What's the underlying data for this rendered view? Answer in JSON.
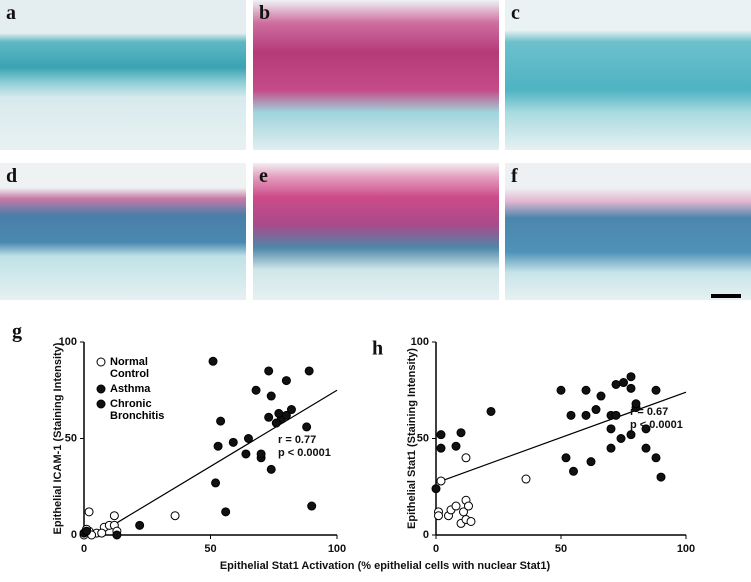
{
  "micrographs": [
    "a",
    "b",
    "c",
    "d",
    "e",
    "f"
  ],
  "chart_data": [
    {
      "type": "scatter",
      "panel": "g",
      "y_label": "Epithelial ICAM-1 (Staining Intensity)",
      "x_label": "Epithelial Stat1 Activation (% epithelial cells with nuclear Stat1)",
      "xlim": [
        0,
        100
      ],
      "ylim": [
        0,
        100
      ],
      "xticks": [
        0,
        50,
        100
      ],
      "yticks": [
        0,
        50,
        100
      ],
      "series": [
        {
          "name": "Normal Control",
          "color": "#ffffff",
          "x": [
            2,
            0,
            2,
            5,
            8,
            10,
            12,
            12,
            13,
            36,
            3,
            7,
            1
          ],
          "values": [
            12,
            0,
            2,
            1,
            4,
            5,
            10,
            5,
            2,
            10,
            0,
            1,
            3
          ]
        },
        {
          "name": "Asthma",
          "color": "#111111",
          "x": [
            51,
            73,
            89,
            80,
            68,
            74,
            54,
            59,
            53,
            78,
            80,
            82,
            76,
            73,
            65,
            70,
            70,
            74,
            56,
            52,
            0,
            1,
            13
          ],
          "values": [
            90,
            85,
            85,
            80,
            75,
            72,
            59,
            48,
            46,
            60,
            62,
            65,
            58,
            61,
            50,
            40,
            42,
            34,
            12,
            27,
            1,
            2,
            0
          ]
        },
        {
          "name": "Chronic Bronchitis",
          "color": "#111111",
          "x": [
            88,
            90,
            22,
            77,
            64
          ],
          "values": [
            56,
            15,
            5,
            63,
            42
          ]
        }
      ],
      "fit": {
        "x": [
          5,
          100
        ],
        "y": [
          0,
          75
        ]
      },
      "annotations": [
        "r = 0.77",
        "p < 0.0001"
      ]
    },
    {
      "type": "scatter",
      "panel": "h",
      "y_label": "Epithelial Stat1 (Staining Intensity)",
      "xlim": [
        0,
        100
      ],
      "ylim": [
        0,
        100
      ],
      "xticks": [
        0,
        50,
        100
      ],
      "yticks": [
        0,
        50,
        100
      ],
      "series": [
        {
          "name": "Normal Control",
          "color": "#ffffff",
          "x": [
            1,
            2,
            5,
            6,
            8,
            10,
            11,
            12,
            12,
            12,
            13,
            14,
            36,
            1
          ],
          "values": [
            12,
            28,
            10,
            13,
            15,
            6,
            12,
            18,
            8,
            40,
            15,
            7,
            29,
            10
          ]
        },
        {
          "name": "Asthma",
          "color": "#111111",
          "x": [
            0,
            2,
            2,
            8,
            10,
            22,
            50,
            54,
            60,
            60,
            64,
            66,
            70,
            72,
            75,
            78,
            78,
            80,
            80,
            72,
            74,
            70
          ],
          "values": [
            24,
            45,
            52,
            46,
            53,
            64,
            75,
            62,
            62,
            75,
            65,
            72,
            62,
            78,
            79,
            82,
            76,
            66,
            68,
            62,
            50,
            55
          ]
        },
        {
          "name": "Chronic Bronchitis",
          "color": "#111111",
          "x": [
            78,
            84,
            84,
            88,
            88,
            90,
            70,
            52,
            55,
            62
          ],
          "values": [
            52,
            45,
            55,
            75,
            40,
            30,
            45,
            40,
            33,
            38
          ]
        }
      ],
      "fit": {
        "x": [
          0,
          100
        ],
        "y": [
          27,
          74
        ]
      },
      "annotations": [
        "r = 0.67",
        "p < 0.0001"
      ]
    }
  ]
}
